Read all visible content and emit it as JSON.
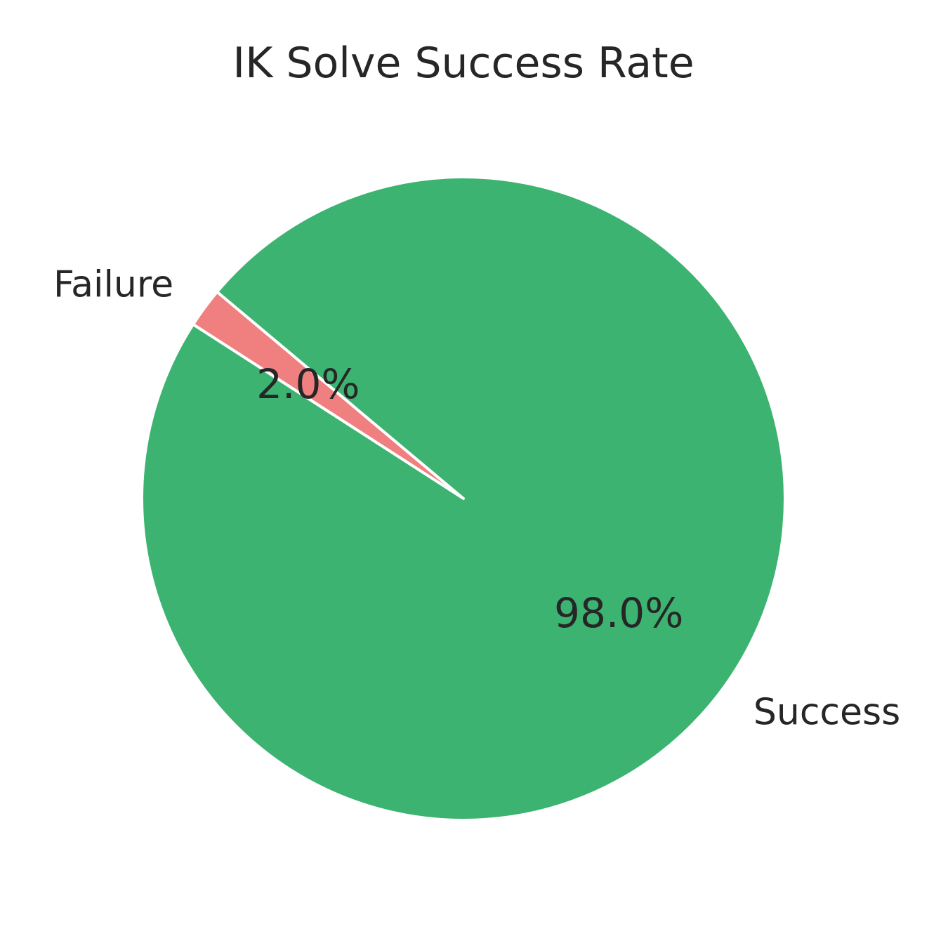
{
  "chart_data": {
    "type": "pie",
    "title": "IK Solve Success Rate",
    "start_angle_deg": 140,
    "direction": "counterclockwise",
    "slices": [
      {
        "label": "Failure",
        "value": 2.0,
        "pct_label": "2.0%",
        "color": "#f08080"
      },
      {
        "label": "Success",
        "value": 98.0,
        "pct_label": "98.0%",
        "color": "#3cb371"
      }
    ]
  }
}
